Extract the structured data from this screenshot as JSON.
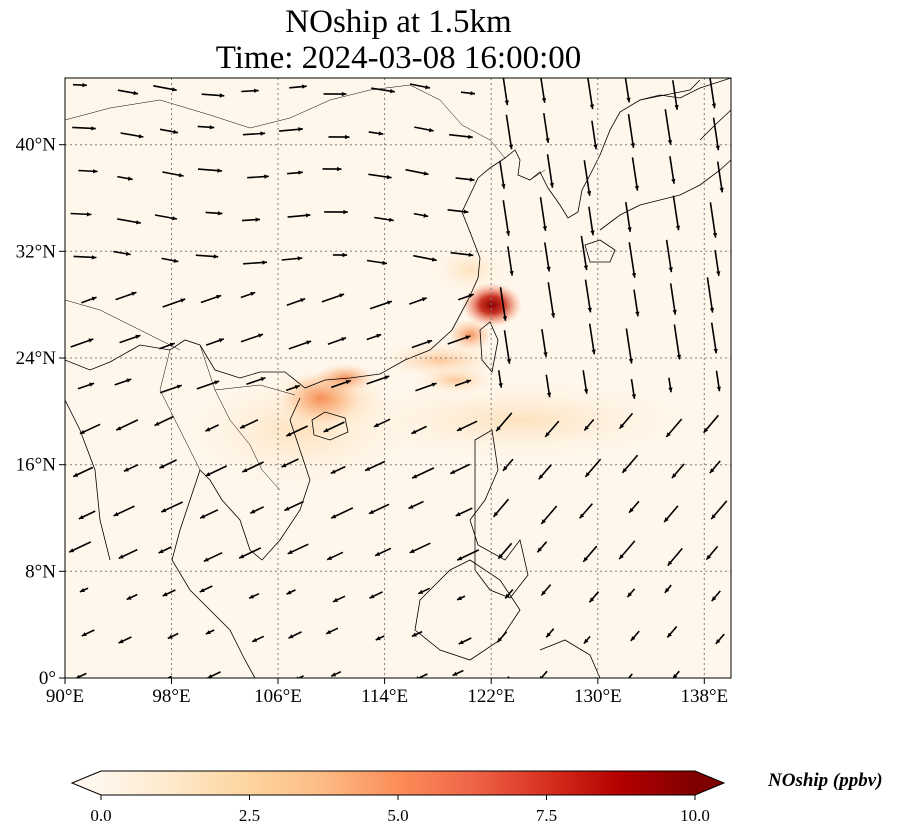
{
  "figure": {
    "title_line1": "NOship at 1.5km",
    "title_line2": "Time: 2024-03-08 16:00:00"
  },
  "map": {
    "lon_range": [
      90,
      140
    ],
    "lat_range": [
      0,
      45
    ],
    "lon_ticks": [
      "90°E",
      "98°E",
      "106°E",
      "114°E",
      "122°E",
      "130°E",
      "138°E"
    ],
    "lat_ticks": [
      "0°",
      "8°N",
      "16°N",
      "24°N",
      "32°N",
      "40°N"
    ],
    "gridlines": true
  },
  "colorbar": {
    "label": "NOship (ppbv)",
    "ticks": [
      "0.0",
      "2.5",
      "5.0",
      "7.5",
      "10.0"
    ],
    "range": [
      0,
      10
    ],
    "colormap": "OrRd",
    "colors": [
      "#fff7ec",
      "#fee8c8",
      "#fdd49e",
      "#fdbb84",
      "#fc8d59",
      "#ef6548",
      "#d7301f",
      "#b30000",
      "#7f0000"
    ]
  }
}
